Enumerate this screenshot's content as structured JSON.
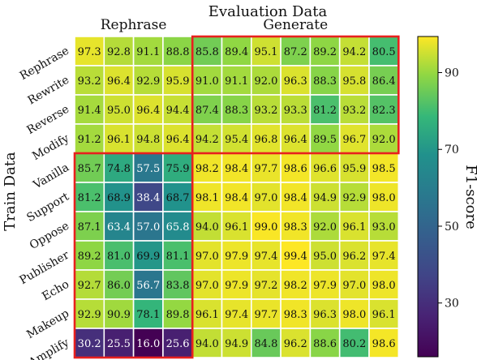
{
  "chart_data": {
    "type": "heatmap",
    "title": "Evaluation Data",
    "xlabel": "Evaluation Data",
    "ylabel": "Train Data",
    "column_groups": [
      {
        "label": "Rephrase",
        "start": 0,
        "end": 3
      },
      {
        "label": "Generate",
        "start": 4,
        "end": 10
      }
    ],
    "row_labels": [
      "Rephrase",
      "Rewrite",
      "Reverse",
      "Modify",
      "Vanilla",
      "Support",
      "Oppose",
      "Publisher",
      "Echo",
      "Makeup",
      "Amplify"
    ],
    "values": [
      [
        97.3,
        92.8,
        91.1,
        88.8,
        85.8,
        89.4,
        95.1,
        87.2,
        89.2,
        94.2,
        80.5
      ],
      [
        93.2,
        96.4,
        92.9,
        95.9,
        91.0,
        91.1,
        92.0,
        96.3,
        88.3,
        95.8,
        86.4
      ],
      [
        91.4,
        95.0,
        96.4,
        94.4,
        87.4,
        88.3,
        93.2,
        93.3,
        81.2,
        93.2,
        82.3
      ],
      [
        91.2,
        96.1,
        94.8,
        96.4,
        94.2,
        95.4,
        96.8,
        96.4,
        89.5,
        96.7,
        92.0
      ],
      [
        85.7,
        74.8,
        57.5,
        75.9,
        98.2,
        98.4,
        97.7,
        98.6,
        96.6,
        95.9,
        98.5
      ],
      [
        81.2,
        68.9,
        38.4,
        68.7,
        98.1,
        98.4,
        97.0,
        98.4,
        94.9,
        92.9,
        98.0
      ],
      [
        87.1,
        63.4,
        57.0,
        65.8,
        94.0,
        96.1,
        99.0,
        98.3,
        92.0,
        96.1,
        93.0
      ],
      [
        89.2,
        81.0,
        69.9,
        81.1,
        97.0,
        97.9,
        97.4,
        99.4,
        95.0,
        96.2,
        97.4
      ],
      [
        92.7,
        86.0,
        56.7,
        83.8,
        97.0,
        97.9,
        97.2,
        98.2,
        97.9,
        97.0,
        98.0
      ],
      [
        92.9,
        90.9,
        78.1,
        89.8,
        96.1,
        97.4,
        97.7,
        98.3,
        96.3,
        98.0,
        96.1
      ],
      [
        30.2,
        25.5,
        16.0,
        25.6,
        94.0,
        94.9,
        84.8,
        96.2,
        88.6,
        80.2,
        98.6
      ]
    ],
    "highlight_boxes": [
      {
        "rows": [
          0,
          3
        ],
        "cols": [
          4,
          10
        ],
        "color": "#e8201e"
      },
      {
        "rows": [
          4,
          10
        ],
        "cols": [
          0,
          3
        ],
        "color": "#e8201e"
      }
    ],
    "colorbar": {
      "label": "F1-score",
      "vmin": 16,
      "vmax": 99.4,
      "ticks": [
        30,
        50,
        70,
        90
      ],
      "colormap": "viridis"
    },
    "grid": true,
    "legend": "none"
  }
}
